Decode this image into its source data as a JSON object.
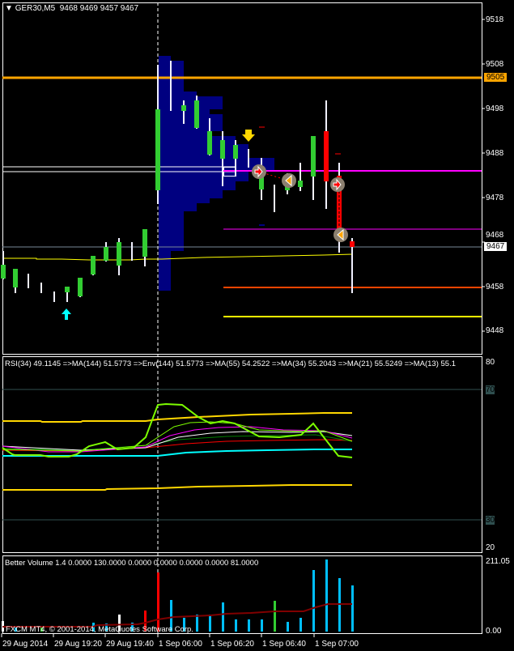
{
  "header": {
    "symbol": "GER30,M5",
    "ohlc": "9468 9469 9457 9467"
  },
  "price_axis": {
    "ticks": [
      "9518",
      "9508",
      "9498",
      "9488",
      "9478",
      "9468",
      "9458",
      "9448"
    ],
    "ask_tag": "9505",
    "bid_tag": "9467"
  },
  "rsi": {
    "title": "RSI(34) 49.1145  =>MA(144) 51.5773  =>Env(144) 51.5773  =>MA(55) 54.2522  =>MA(34) 55.2043  =>MA(21) 55.5249  =>MA(13) 55.1",
    "ticks": {
      "top": "80",
      "l70": "70",
      "l30": "30",
      "bottom": "20"
    }
  },
  "volume": {
    "title": "Better Volume 1.4 0.0000 130.0000 0.0000 0.0000 0.0000 0.0000 81.0000",
    "ticks": {
      "top": "211.05",
      "bottom": "0.00"
    }
  },
  "copyright": "FXCM MT4, © 2001-2014, MetaQuotes Software Corp.",
  "time_axis": [
    "29 Aug 2014",
    "29 Aug 19:20",
    "29 Aug 19:40",
    "1 Sep 06:00",
    "1 Sep 06:20",
    "1 Sep 06:40",
    "1 Sep 07:00"
  ],
  "colors": {
    "bull": "#32cd32",
    "bear": "#ff0000",
    "profile": "#000080",
    "ask_line": "#ffa500",
    "grid": "#2f4f4f",
    "volume": "#00bfff"
  }
}
